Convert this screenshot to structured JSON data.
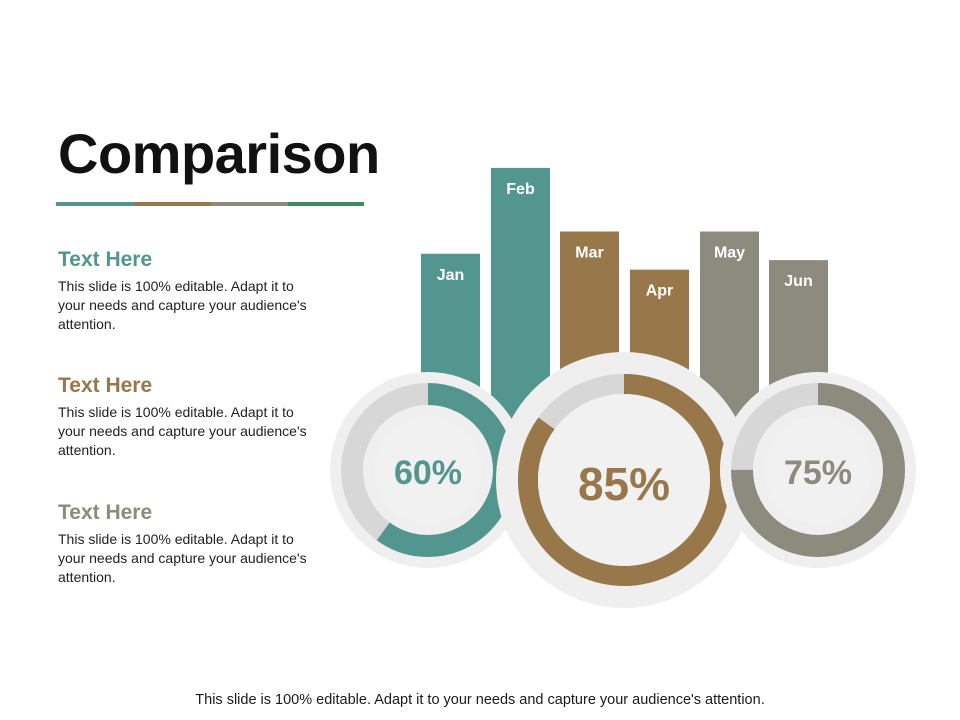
{
  "slide": {
    "title": "Comparison",
    "rule_colors": [
      "#53958f",
      "#98784a",
      "#8c8b7d",
      "#3f8c63"
    ],
    "blocks": [
      {
        "title": "Text Here",
        "text": "This slide is 100% editable. Adapt it to your needs and capture your audience's attention.",
        "color": "#53958f"
      },
      {
        "title": "Text Here",
        "text": "This slide is 100% editable. Adapt it to your needs and capture your audience's attention.",
        "color": "#98784a"
      },
      {
        "title": "Text Here",
        "text": "This slide is 100% editable. Adapt it to your needs and capture your audience's attention.",
        "color": "#8c8b7d"
      }
    ],
    "footer": "This slide is 100% editable. Adapt it to your needs and capture your audience's attention."
  },
  "chart_data": {
    "type": "bar",
    "categories": [
      "Jan",
      "Feb",
      "Mar",
      "Apr",
      "May",
      "Jun"
    ],
    "values": [
      68,
      95,
      75,
      63,
      75,
      66
    ],
    "colors": [
      "#53958f",
      "#53958f",
      "#98784a",
      "#98784a",
      "#8c8b7d",
      "#8c8b7d"
    ],
    "donuts": [
      {
        "label": "60%",
        "value": 60,
        "color": "#53958f"
      },
      {
        "label": "85%",
        "value": 85,
        "color": "#98784a"
      },
      {
        "label": "75%",
        "value": 75,
        "color": "#8c8b7d"
      }
    ]
  }
}
